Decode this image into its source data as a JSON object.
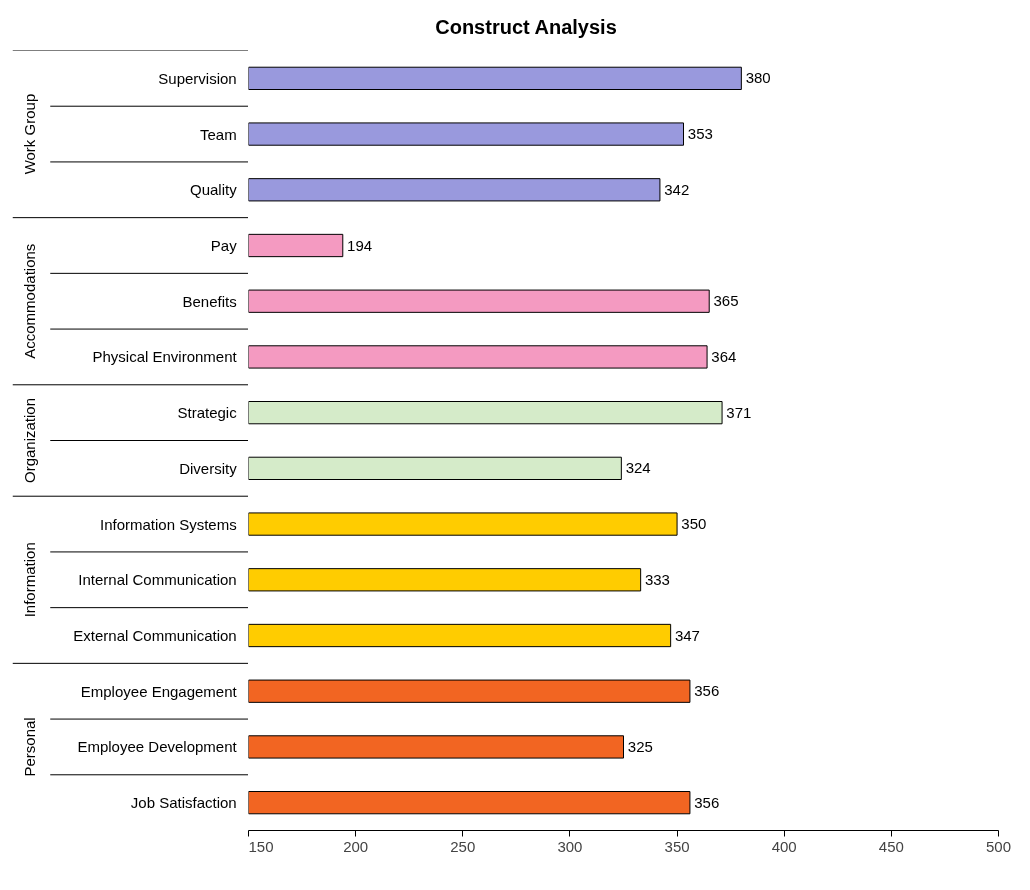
{
  "chart_data": {
    "type": "bar",
    "orientation": "horizontal",
    "title": "Construct Analysis",
    "categories": [
      "Supervision",
      "Team",
      "Quality",
      "Pay",
      "Benefits",
      "Physical Environment",
      "Strategic",
      "Diversity",
      "Information Systems",
      "Internal Communication",
      "External Communication",
      "Employee Engagement",
      "Employee Development",
      "Job Satisfaction"
    ],
    "values": [
      380,
      353,
      342,
      194,
      365,
      364,
      371,
      324,
      350,
      333,
      347,
      356,
      325,
      356
    ],
    "colors": [
      "#9999dd",
      "#9999dd",
      "#9999dd",
      "#f49ac1",
      "#f49ac1",
      "#f49ac1",
      "#d5ebc9",
      "#d5ebc9",
      "#ffcc00",
      "#ffcc00",
      "#ffcc00",
      "#f26522",
      "#f26522",
      "#f26522"
    ],
    "annotations": [
      "Work Group",
      "Accommodations",
      "Organization",
      "Information",
      "Personal"
    ],
    "xlim": [
      150,
      500
    ],
    "xticks": [
      150,
      200,
      250,
      300,
      350,
      400,
      450,
      500
    ],
    "data_labels": true,
    "grid": false
  }
}
